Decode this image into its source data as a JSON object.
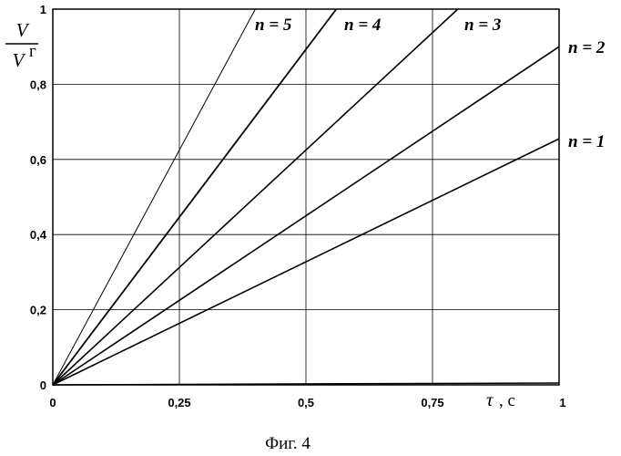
{
  "chart_data": {
    "type": "line",
    "ylabel_numerator": "V",
    "ylabel_denominator": "V",
    "ylabel_denominator_sup": "г",
    "xlabel_symbol": "τ",
    "xlabel_unit": ", с",
    "xlim": [
      0,
      1
    ],
    "ylim": [
      0,
      1
    ],
    "xticks": [
      0,
      0.25,
      0.5,
      0.75,
      1
    ],
    "xtick_labels": [
      "0",
      "0,25",
      "0,5",
      "0,75",
      "1"
    ],
    "yticks": [
      0,
      0.2,
      0.4,
      0.6,
      0.8,
      1
    ],
    "ytick_labels": [
      "0",
      "0,2",
      "0,4",
      "0,6",
      "0,8",
      "1"
    ],
    "grid": true,
    "series": [
      {
        "name": "n = 1",
        "x": [
          0,
          1
        ],
        "y": [
          0,
          0.655
        ]
      },
      {
        "name": "n = 2",
        "x": [
          0,
          1
        ],
        "y": [
          0,
          0.9
        ]
      },
      {
        "name": "n = 3",
        "x": [
          0,
          0.8
        ],
        "y": [
          0,
          1
        ]
      },
      {
        "name": "n = 4",
        "x": [
          0,
          0.56
        ],
        "y": [
          0,
          1
        ]
      },
      {
        "name": "n = 5",
        "x": [
          0,
          0.4
        ],
        "y": [
          0,
          1
        ]
      }
    ],
    "baseline": {
      "x": [
        0,
        1
      ],
      "y": [
        0,
        0.005
      ]
    },
    "caption": "Фиг. 4"
  }
}
